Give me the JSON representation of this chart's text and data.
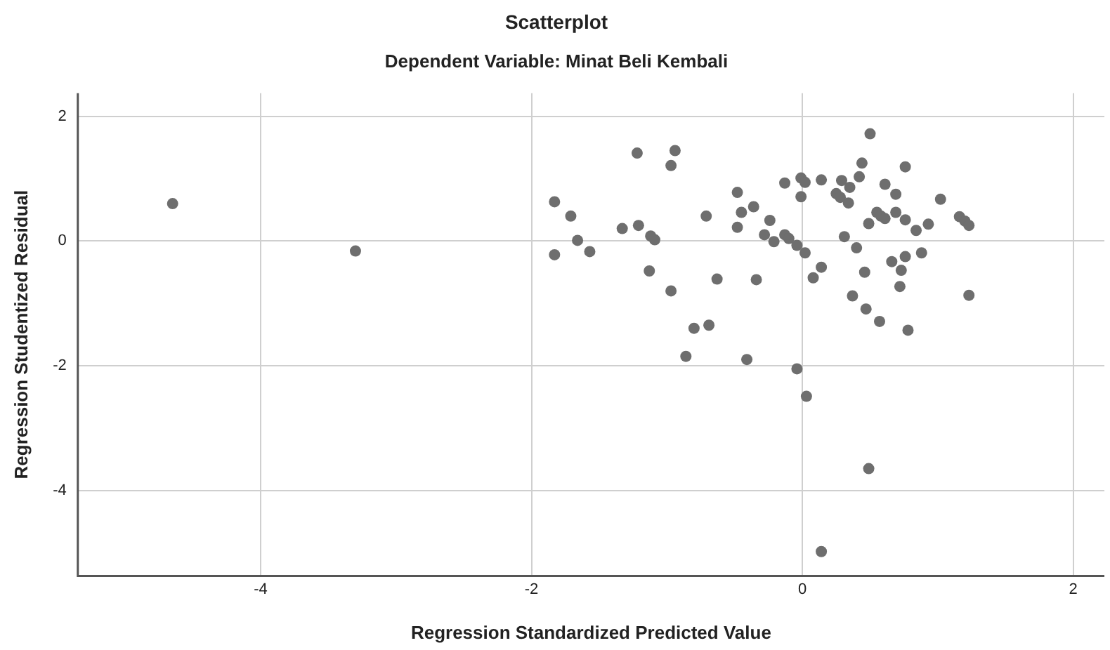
{
  "chart_data": {
    "type": "scatter",
    "title": "Scatterplot",
    "subtitle": "Dependent Variable: Minat Beli Kembali",
    "xlabel": "Regression Standardized Predicted Value",
    "ylabel": "Regression Studentized Residual",
    "xlim": [
      -5.35,
      2.23
    ],
    "ylim": [
      -5.37,
      2.37
    ],
    "xticks": [
      -4,
      -2,
      0,
      2
    ],
    "yticks": [
      -4,
      -2,
      0,
      2
    ],
    "grid": true,
    "legend": false,
    "marker": "circle",
    "series": [
      {
        "color": "#6e6e6e",
        "x": [
          -4.65,
          -3.3,
          -1.83,
          -1.71,
          -1.66,
          -1.83,
          -1.57,
          -1.33,
          -1.22,
          -1.21,
          -1.12,
          -1.09,
          -1.13,
          -0.97,
          -0.94,
          -0.97,
          -0.71,
          -0.63,
          -0.8,
          -0.69,
          -0.86,
          -0.41,
          -0.48,
          -0.45,
          -0.48,
          -0.36,
          -0.34,
          -0.24,
          -0.28,
          -0.21,
          -0.13,
          -0.13,
          -0.1,
          -0.04,
          -0.01,
          0.02,
          -0.01,
          0.02,
          0.08,
          0.14,
          0.14,
          -0.04,
          0.5,
          0.44,
          0.76,
          0.29,
          0.35,
          0.42,
          0.61,
          0.25,
          0.28,
          0.34,
          0.69,
          1.02,
          0.55,
          0.58,
          0.61,
          0.49,
          0.69,
          0.76,
          0.84,
          0.93,
          1.16,
          1.2,
          1.23,
          0.31,
          0.4,
          0.88,
          0.76,
          0.66,
          0.73,
          0.46,
          0.72,
          0.37,
          1.23,
          0.47,
          0.57,
          0.78,
          0.03,
          0.49,
          0.14
        ],
        "values": [
          0.6,
          -0.16,
          0.63,
          0.4,
          0.01,
          -0.22,
          -0.17,
          0.2,
          1.41,
          0.25,
          0.08,
          0.02,
          -0.48,
          1.21,
          1.45,
          -0.8,
          0.4,
          -0.61,
          -1.4,
          -1.35,
          -1.85,
          -1.9,
          0.78,
          0.46,
          0.22,
          0.55,
          -0.62,
          0.33,
          0.1,
          -0.01,
          0.93,
          0.1,
          0.04,
          -0.07,
          1.01,
          0.94,
          0.71,
          -0.19,
          -0.59,
          -0.42,
          0.98,
          -2.05,
          1.72,
          1.25,
          1.19,
          0.97,
          0.86,
          1.03,
          0.91,
          0.76,
          0.7,
          0.61,
          0.75,
          0.67,
          0.46,
          0.4,
          0.36,
          0.28,
          0.46,
          0.34,
          0.17,
          0.27,
          0.39,
          0.32,
          0.25,
          0.07,
          -0.11,
          -0.19,
          -0.25,
          -0.33,
          -0.47,
          -0.5,
          -0.73,
          -0.88,
          -0.87,
          -1.09,
          -1.29,
          -1.43,
          -2.49,
          -3.65,
          -4.98
        ]
      }
    ]
  }
}
